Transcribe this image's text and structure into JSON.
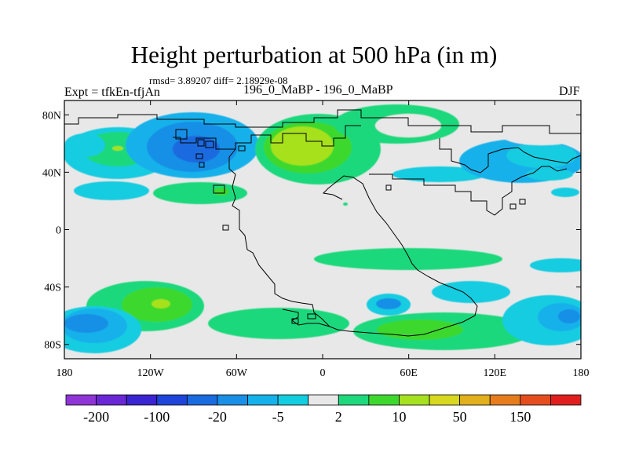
{
  "header": {
    "title": "Height perturbation at 500 hPa (in m)",
    "stats": "rmsd= 3.89207 diff= 2.18929e-08",
    "left_label": "Expt = tfkEn-tfjAn",
    "center_label": "196_0_MaBP - 196_0_MaBP",
    "right_label": "DJF"
  },
  "map": {
    "lon_range": [
      -180,
      180
    ],
    "lat_range": [
      -90,
      90
    ],
    "y_ticks": [
      {
        "lat": 80,
        "label": "80N"
      },
      {
        "lat": 40,
        "label": "40N"
      },
      {
        "lat": 0,
        "label": "0"
      },
      {
        "lat": -40,
        "label": "40S"
      },
      {
        "lat": -80,
        "label": "80S"
      }
    ],
    "x_ticks": [
      {
        "lon": -180,
        "label": "180"
      },
      {
        "lon": -120,
        "label": "120W"
      },
      {
        "lon": -60,
        "label": "60W"
      },
      {
        "lon": 0,
        "label": "0"
      },
      {
        "lon": 60,
        "label": "60E"
      },
      {
        "lon": 120,
        "label": "120E"
      },
      {
        "lon": 180,
        "label": "180"
      }
    ],
    "background_color": "#e8e8e8",
    "coastline_color": "#000000"
  },
  "colorbar": {
    "colors": [
      "#8f35d7",
      "#6a27d6",
      "#3b24d1",
      "#1f44db",
      "#1a6ae0",
      "#198fe6",
      "#14b1ea",
      "#12cce0",
      "#e8e8e8",
      "#1dd87c",
      "#3cd82e",
      "#a6e11f",
      "#d8d81e",
      "#e2b01c",
      "#e57d1c",
      "#e54d1e",
      "#e01e1e"
    ],
    "labels": [
      {
        "after_box": 1,
        "text": "-200"
      },
      {
        "after_box": 3,
        "text": "-100"
      },
      {
        "after_box": 5,
        "text": "-20"
      },
      {
        "after_box": 7,
        "text": "-5"
      },
      {
        "after_box": 9,
        "text": "2"
      },
      {
        "after_box": 11,
        "text": "10"
      },
      {
        "after_box": 13,
        "text": "50"
      },
      {
        "after_box": 15,
        "text": "150"
      }
    ]
  }
}
